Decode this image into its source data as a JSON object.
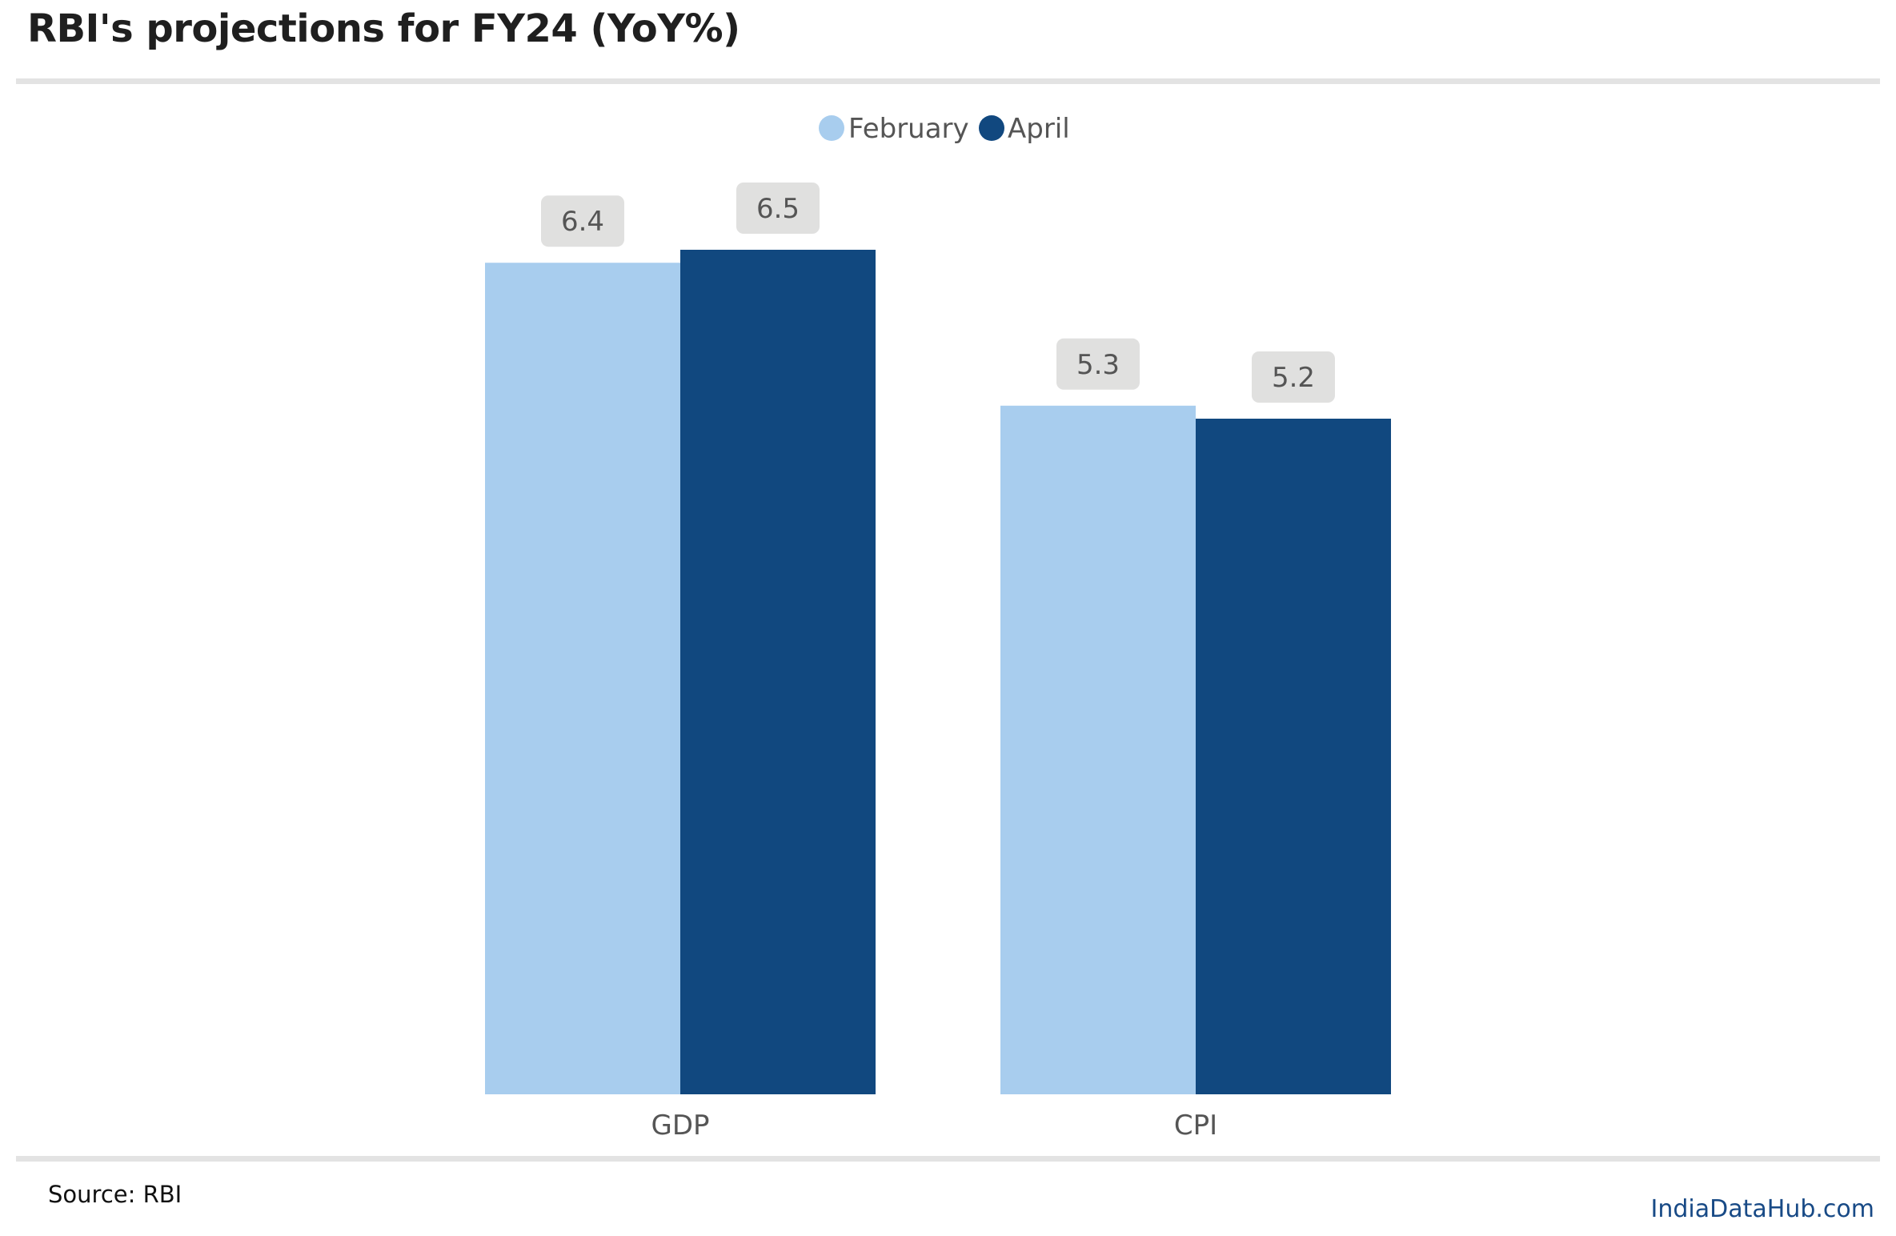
{
  "header": {
    "title": "RBI's projections for FY24 (YoY%)"
  },
  "footer": {
    "source": "Source: RBI",
    "credit": "IndiaDataHub.com"
  },
  "colors": {
    "february": "#a8cdee",
    "april": "#11487f",
    "label_box": "#e0e0df",
    "label_text": "#555555",
    "axis_text": "#555555",
    "legend_text": "#555555"
  },
  "chart_data": {
    "type": "bar",
    "title": "RBI's projections for FY24 (YoY%)",
    "categories": [
      "GDP",
      "CPI"
    ],
    "series": [
      {
        "name": "February",
        "values": [
          6.4,
          5.3
        ]
      },
      {
        "name": "April",
        "values": [
          6.5,
          5.2
        ]
      }
    ],
    "xlabel": "",
    "ylabel": "",
    "ylim": [
      0,
      6.5
    ],
    "legend": "top-center",
    "grid": false,
    "data_labels": true
  }
}
